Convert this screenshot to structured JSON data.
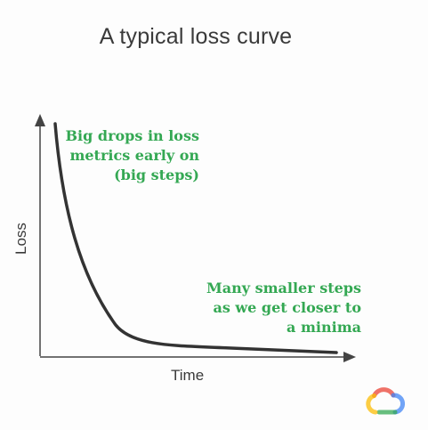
{
  "title": "A typical loss curve",
  "axes": {
    "x_label": "Time",
    "y_label": "Loss"
  },
  "annotations": {
    "early": {
      "lines": [
        "Big drops in loss",
        "metrics early on",
        "(big steps)"
      ],
      "color": "#34a853"
    },
    "late": {
      "lines": [
        "Many smaller steps",
        "as we get closer to",
        "a minima"
      ],
      "color": "#34a853"
    }
  },
  "curve": {
    "color": "#333333"
  },
  "logo": {
    "icon": "google-cloud-logo-icon",
    "colors": [
      "#ea4335",
      "#fbbc05",
      "#34a853",
      "#4285f4"
    ]
  }
}
